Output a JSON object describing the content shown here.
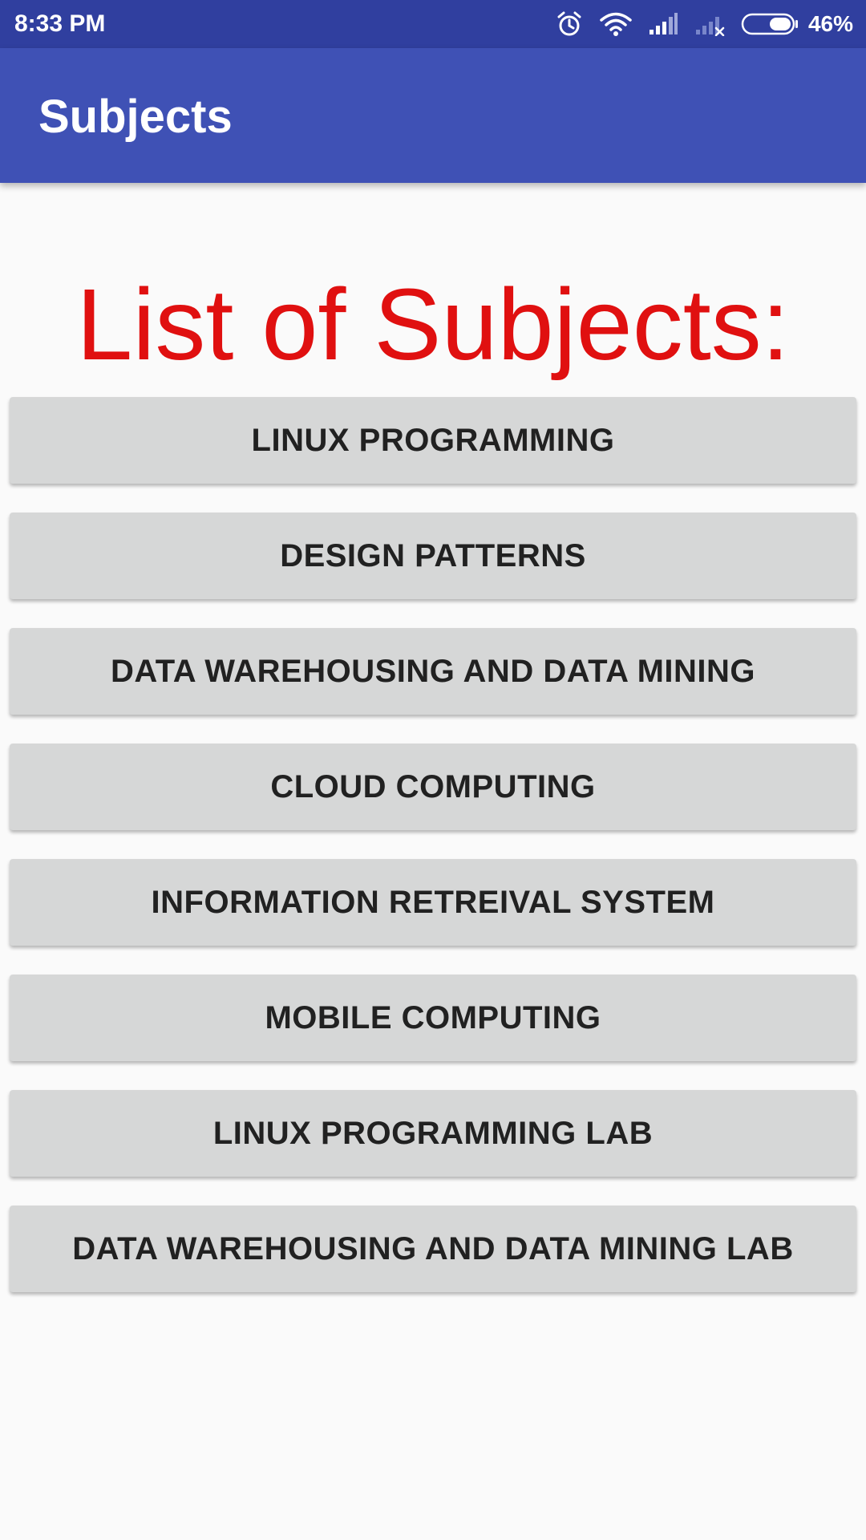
{
  "status_bar": {
    "time": "8:33 PM",
    "battery_percent": "46%",
    "battery_level": 0.46,
    "icons": [
      "alarm-icon",
      "wifi-icon",
      "signal-icon",
      "no-signal-icon",
      "battery-icon"
    ]
  },
  "app_bar": {
    "title": "Subjects"
  },
  "main": {
    "heading": "List of Subjects:",
    "subjects": [
      "LINUX PROGRAMMING",
      "DESIGN PATTERNS",
      "DATA WAREHOUSING AND DATA MINING",
      "CLOUD COMPUTING",
      "INFORMATION RETREIVAL SYSTEM",
      "MOBILE COMPUTING",
      "LINUX PROGRAMMING LAB",
      "DATA WAREHOUSING AND DATA MINING LAB"
    ]
  },
  "colors": {
    "status_bar": "#303f9f",
    "app_bar": "#3f51b5",
    "heading": "#e01010",
    "button": "#d6d7d7",
    "button_text": "#212121",
    "background": "#fafafa"
  }
}
